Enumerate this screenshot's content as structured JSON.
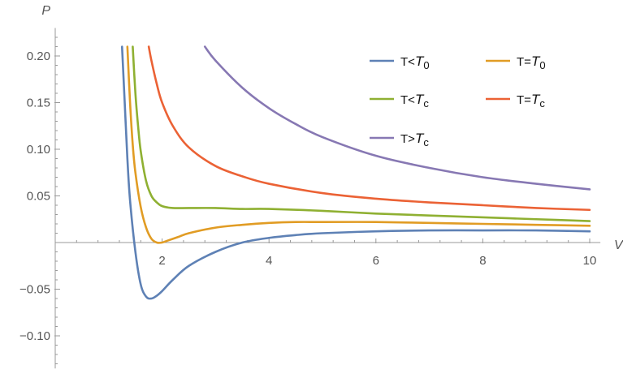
{
  "chart_data": {
    "type": "line",
    "title": "",
    "xlabel": "V",
    "ylabel": "P",
    "xlim": [
      0,
      10.2
    ],
    "ylim": [
      -0.135,
      0.23
    ],
    "x_ticks": [
      2,
      4,
      6,
      8,
      10
    ],
    "x_tick_labels": [
      "2",
      "4",
      "6",
      "8",
      "10"
    ],
    "y_ticks": [
      -0.1,
      -0.05,
      0.05,
      0.1,
      0.15,
      0.2
    ],
    "y_tick_labels": [
      "−0.10",
      "−0.05",
      "0.05",
      "0.10",
      "0.15",
      "0.20"
    ],
    "grid": false,
    "legend_position": "top-right",
    "series": [
      {
        "name": "T<T0",
        "label_main": "T<",
        "label_sub": "T",
        "label_subscript": "0",
        "color": "#5E81B5",
        "x": [
          1.25,
          1.3,
          1.35,
          1.4,
          1.5,
          1.6,
          1.7,
          1.8,
          1.9,
          2.0,
          2.2,
          2.5,
          3.0,
          3.5,
          4.0,
          4.5,
          5.0,
          6.0,
          7.0,
          8.0,
          9.0,
          10.0
        ],
        "y": [
          0.21,
          0.15,
          0.09,
          0.045,
          -0.01,
          -0.045,
          -0.058,
          -0.06,
          -0.057,
          -0.052,
          -0.04,
          -0.025,
          -0.01,
          0.0,
          0.005,
          0.008,
          0.01,
          0.012,
          0.013,
          0.013,
          0.013,
          0.012
        ]
      },
      {
        "name": "T=T0",
        "label_main": "T=",
        "label_sub": "T",
        "label_subscript": "0",
        "color": "#E19C24",
        "x": [
          1.35,
          1.4,
          1.45,
          1.5,
          1.6,
          1.7,
          1.8,
          1.9,
          2.0,
          2.1,
          2.3,
          2.5,
          3.0,
          3.5,
          4.0,
          4.5,
          5.0,
          6.0,
          7.0,
          8.0,
          9.0,
          10.0
        ],
        "y": [
          0.21,
          0.15,
          0.105,
          0.075,
          0.038,
          0.016,
          0.004,
          0.0,
          0.0,
          0.002,
          0.006,
          0.01,
          0.016,
          0.019,
          0.021,
          0.022,
          0.022,
          0.022,
          0.021,
          0.02,
          0.019,
          0.018
        ]
      },
      {
        "name": "T<Tc",
        "label_main": "T<",
        "label_sub": "T",
        "label_subscript": "c",
        "color": "#8FB032",
        "x": [
          1.45,
          1.5,
          1.55,
          1.6,
          1.7,
          1.8,
          1.9,
          2.0,
          2.2,
          2.5,
          3.0,
          3.5,
          4.0,
          5.0,
          6.0,
          7.0,
          8.0,
          9.0,
          10.0
        ],
        "y": [
          0.21,
          0.16,
          0.125,
          0.098,
          0.066,
          0.05,
          0.043,
          0.039,
          0.037,
          0.037,
          0.037,
          0.036,
          0.036,
          0.034,
          0.031,
          0.029,
          0.027,
          0.025,
          0.023
        ]
      },
      {
        "name": "T=Tc",
        "label_main": "T=",
        "label_sub": "T",
        "label_subscript": "c",
        "color": "#EB6235",
        "x": [
          1.75,
          1.8,
          1.9,
          2.0,
          2.2,
          2.5,
          3.0,
          3.5,
          4.0,
          5.0,
          6.0,
          7.0,
          8.0,
          9.0,
          10.0
        ],
        "y": [
          0.21,
          0.195,
          0.17,
          0.15,
          0.125,
          0.102,
          0.082,
          0.071,
          0.063,
          0.053,
          0.047,
          0.043,
          0.04,
          0.037,
          0.035
        ]
      },
      {
        "name": "T>Tc",
        "label_main": "T>",
        "label_sub": "T",
        "label_subscript": "c",
        "color": "#8778B3",
        "x": [
          2.8,
          3.0,
          3.5,
          4.0,
          4.5,
          5.0,
          6.0,
          7.0,
          8.0,
          9.0,
          10.0
        ],
        "y": [
          0.21,
          0.195,
          0.166,
          0.144,
          0.127,
          0.113,
          0.093,
          0.08,
          0.07,
          0.063,
          0.057
        ]
      }
    ]
  }
}
